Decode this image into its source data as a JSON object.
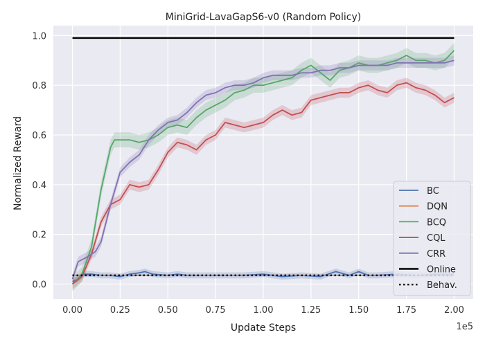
{
  "chart_data": {
    "type": "line",
    "title": "MiniGrid-LavaGapS6-v0 (Random Policy)",
    "xlabel": "Update Steps",
    "ylabel": "Normalized Reward",
    "x_multiplier_label": "1e5",
    "xlim": [
      -0.1,
      2.1
    ],
    "ylim": [
      -0.06,
      1.04
    ],
    "x_ticks": [
      0.0,
      0.25,
      0.5,
      0.75,
      1.0,
      1.25,
      1.5,
      1.75,
      2.0
    ],
    "x_tick_labels": [
      "0.00",
      "0.25",
      "0.50",
      "0.75",
      "1.00",
      "1.25",
      "1.50",
      "1.75",
      "2.00"
    ],
    "y_ticks": [
      0.0,
      0.2,
      0.4,
      0.6,
      0.8,
      1.0
    ],
    "y_tick_labels": [
      "0.0",
      "0.2",
      "0.4",
      "0.6",
      "0.8",
      "1.0"
    ],
    "grid": true,
    "legend_position": "lower-right",
    "background": "#eaeaf2",
    "series": [
      {
        "name": "BC",
        "color": "#4c72b0",
        "style": "solid",
        "x": [
          0.0,
          0.03,
          0.06,
          0.1,
          0.15,
          0.2,
          0.25,
          0.3,
          0.35,
          0.38,
          0.42,
          0.5,
          0.55,
          0.6,
          0.7,
          0.8,
          0.9,
          1.0,
          1.1,
          1.2,
          1.3,
          1.38,
          1.45,
          1.5,
          1.55,
          1.6,
          1.7,
          1.8,
          1.9,
          2.0
        ],
        "values": [
          0.01,
          0.02,
          0.04,
          0.04,
          0.035,
          0.035,
          0.03,
          0.04,
          0.045,
          0.05,
          0.04,
          0.035,
          0.04,
          0.035,
          0.035,
          0.035,
          0.035,
          0.04,
          0.03,
          0.035,
          0.03,
          0.05,
          0.035,
          0.05,
          0.035,
          0.035,
          0.04,
          0.035,
          0.04,
          0.04
        ],
        "band": 0.012
      },
      {
        "name": "DQN",
        "color": "#dd8452",
        "style": "solid",
        "x": [
          0.0,
          0.25,
          0.5,
          0.75,
          1.0,
          1.25,
          1.5,
          1.75,
          2.0
        ],
        "values": [
          0.035,
          0.035,
          0.035,
          0.035,
          0.035,
          0.035,
          0.035,
          0.035,
          0.035
        ],
        "band": 0.0
      },
      {
        "name": "BCQ",
        "color": "#55a868",
        "style": "solid",
        "x": [
          0.0,
          0.05,
          0.1,
          0.15,
          0.2,
          0.22,
          0.25,
          0.3,
          0.35,
          0.4,
          0.45,
          0.5,
          0.55,
          0.6,
          0.65,
          0.7,
          0.75,
          0.8,
          0.85,
          0.9,
          0.95,
          1.0,
          1.05,
          1.1,
          1.15,
          1.2,
          1.25,
          1.3,
          1.35,
          1.4,
          1.45,
          1.5,
          1.55,
          1.6,
          1.65,
          1.7,
          1.75,
          1.8,
          1.85,
          1.9,
          1.95,
          2.0
        ],
        "values": [
          0.0,
          0.04,
          0.15,
          0.38,
          0.55,
          0.58,
          0.58,
          0.58,
          0.57,
          0.58,
          0.6,
          0.63,
          0.64,
          0.63,
          0.67,
          0.7,
          0.72,
          0.74,
          0.77,
          0.78,
          0.8,
          0.8,
          0.81,
          0.82,
          0.83,
          0.86,
          0.88,
          0.85,
          0.82,
          0.86,
          0.87,
          0.89,
          0.88,
          0.88,
          0.89,
          0.9,
          0.92,
          0.9,
          0.9,
          0.89,
          0.9,
          0.94
        ],
        "band": 0.03
      },
      {
        "name": "CQL",
        "color": "#c44e52",
        "style": "solid",
        "x": [
          0.0,
          0.05,
          0.1,
          0.15,
          0.2,
          0.25,
          0.3,
          0.35,
          0.4,
          0.45,
          0.5,
          0.55,
          0.6,
          0.65,
          0.7,
          0.75,
          0.8,
          0.85,
          0.9,
          0.95,
          1.0,
          1.05,
          1.1,
          1.15,
          1.2,
          1.25,
          1.3,
          1.35,
          1.4,
          1.45,
          1.5,
          1.55,
          1.6,
          1.65,
          1.7,
          1.75,
          1.8,
          1.85,
          1.9,
          1.95,
          2.0
        ],
        "values": [
          0.0,
          0.03,
          0.12,
          0.25,
          0.32,
          0.34,
          0.4,
          0.39,
          0.4,
          0.46,
          0.53,
          0.57,
          0.56,
          0.54,
          0.58,
          0.6,
          0.65,
          0.64,
          0.63,
          0.64,
          0.65,
          0.68,
          0.7,
          0.68,
          0.69,
          0.74,
          0.75,
          0.76,
          0.77,
          0.77,
          0.79,
          0.8,
          0.78,
          0.77,
          0.8,
          0.81,
          0.79,
          0.78,
          0.76,
          0.73,
          0.75
        ],
        "band": 0.02
      },
      {
        "name": "CRR",
        "color": "#8172b3",
        "style": "solid",
        "x": [
          0.0,
          0.03,
          0.08,
          0.12,
          0.15,
          0.2,
          0.25,
          0.3,
          0.35,
          0.4,
          0.45,
          0.5,
          0.55,
          0.6,
          0.65,
          0.7,
          0.75,
          0.8,
          0.85,
          0.9,
          0.95,
          1.0,
          1.05,
          1.1,
          1.15,
          1.2,
          1.25,
          1.3,
          1.35,
          1.4,
          1.45,
          1.5,
          1.55,
          1.6,
          1.65,
          1.7,
          1.75,
          1.8,
          1.85,
          1.9,
          1.95,
          2.0
        ],
        "values": [
          0.02,
          0.09,
          0.11,
          0.13,
          0.17,
          0.32,
          0.45,
          0.49,
          0.52,
          0.58,
          0.62,
          0.65,
          0.66,
          0.69,
          0.73,
          0.76,
          0.77,
          0.79,
          0.8,
          0.8,
          0.81,
          0.83,
          0.84,
          0.84,
          0.84,
          0.85,
          0.85,
          0.86,
          0.86,
          0.87,
          0.87,
          0.88,
          0.88,
          0.88,
          0.88,
          0.89,
          0.89,
          0.89,
          0.89,
          0.89,
          0.89,
          0.9
        ],
        "band": 0.02
      },
      {
        "name": "Online",
        "color": "#000000",
        "style": "solid",
        "x": [
          0.0,
          2.0
        ],
        "values": [
          0.99,
          0.99
        ],
        "band": 0.0
      },
      {
        "name": "Behav.",
        "color": "#000000",
        "style": "dotted",
        "x": [
          0.0,
          2.0
        ],
        "values": [
          0.035,
          0.035
        ],
        "band": 0.0
      }
    ]
  }
}
